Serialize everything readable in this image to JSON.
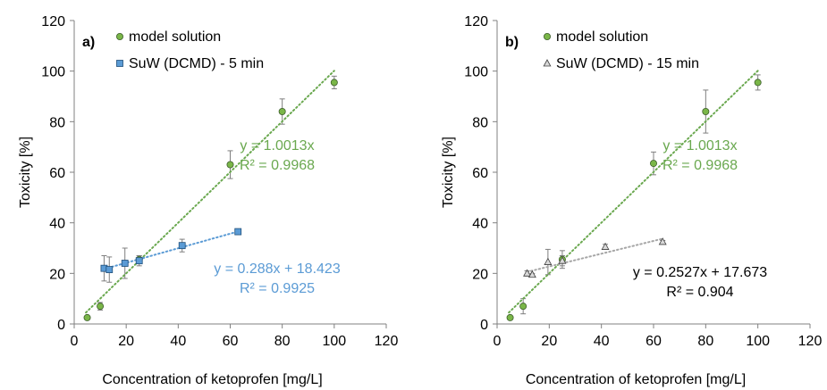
{
  "colors": {
    "model": "#6aa84f",
    "model_fill": "#7ab648",
    "suw_a": "#5b9bd5",
    "suw_b_marker": "#d9d9d9",
    "trend_b": "#a6a6a6",
    "eq_b": "#000000",
    "errorbar": "#7f7f7f"
  },
  "chart_data": [
    {
      "type": "scatter",
      "panel_label": "a)",
      "xlabel": "Concentration of ketoprofen [mg/L]",
      "ylabel": "Toxicity [%]",
      "xlim": [
        0,
        120
      ],
      "ylim": [
        0,
        120
      ],
      "xticks": [
        "0",
        "20",
        "40",
        "60",
        "80",
        "100",
        "120"
      ],
      "yticks": [
        "0",
        "20",
        "40",
        "60",
        "80",
        "100",
        "120"
      ],
      "grid": false,
      "legend_position": "top-left",
      "series": [
        {
          "name": "model solution",
          "marker": "circle",
          "x": [
            5,
            10,
            25,
            60,
            80,
            100
          ],
          "y": [
            2.5,
            7,
            25.5,
            63,
            84,
            95.5
          ],
          "err": [
            0,
            1.5,
            1.5,
            5.5,
            5,
            2.5
          ],
          "trendline": {
            "slope": 1.0013,
            "intercept": 0,
            "x_range": [
              4.5,
              100
            ],
            "equation": "y = 1.0013x",
            "r2": "R² = 0.9968"
          }
        },
        {
          "name": "SuW (DCMD) - 5 min",
          "marker": "square",
          "x": [
            11.5,
            13.5,
            19.5,
            25,
            41.5,
            63
          ],
          "y": [
            22,
            21.5,
            24,
            25,
            31,
            36.5
          ],
          "err": [
            5,
            5,
            6,
            2,
            2.5,
            0.5
          ],
          "trendline": {
            "slope": 0.288,
            "intercept": 18.423,
            "x_range": [
              11.5,
              63
            ],
            "equation": "y = 0.288x + 18.423",
            "r2": "R² = 0.9925"
          }
        }
      ]
    },
    {
      "type": "scatter",
      "panel_label": "b)",
      "xlabel": "Concentration of ketoprofen [mg/L]",
      "ylabel": "Toxicity [%]",
      "xlim": [
        0,
        120
      ],
      "ylim": [
        0,
        120
      ],
      "xticks": [
        "0",
        "20",
        "40",
        "60",
        "80",
        "100",
        "120"
      ],
      "yticks": [
        "0",
        "20",
        "40",
        "60",
        "80",
        "100",
        "120"
      ],
      "grid": false,
      "legend_position": "top-left",
      "series": [
        {
          "name": "model solution",
          "marker": "circle",
          "x": [
            5,
            10,
            25,
            60,
            80,
            100
          ],
          "y": [
            2.5,
            7,
            25.5,
            63.5,
            84,
            95.5
          ],
          "err": [
            0,
            3,
            3.5,
            4.5,
            8.5,
            3
          ],
          "trendline": {
            "slope": 1.0013,
            "intercept": 0,
            "x_range": [
              4.5,
              100
            ],
            "equation": "y = 1.0013x",
            "r2": "R² = 0.9968"
          }
        },
        {
          "name": "SuW (DCMD) - 15 min",
          "marker": "triangle",
          "x": [
            11.5,
            13.5,
            19.5,
            25,
            41.5,
            63.5
          ],
          "y": [
            20,
            19.5,
            24.5,
            25,
            30.5,
            32.5
          ],
          "err": [
            1,
            0.5,
            5,
            2,
            1,
            0.5
          ],
          "trendline": {
            "slope": 0.2527,
            "intercept": 17.673,
            "x_range": [
              11.5,
              63.5
            ],
            "equation": "y = 0.2527x + 17.673",
            "r2": "R² = 0.904"
          }
        }
      ]
    }
  ]
}
